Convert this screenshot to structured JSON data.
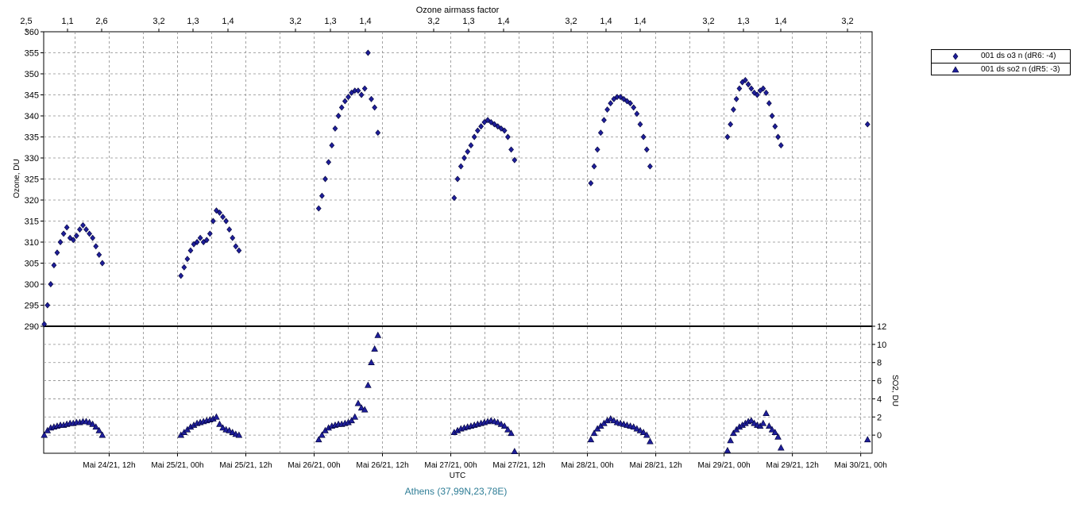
{
  "chart_data": {
    "type": "scatter",
    "top_axis": {
      "label": "Ozone airmass factor",
      "ticks": [
        "2,5",
        "1,1",
        "2,6",
        "3,2",
        "1,3",
        "1,4",
        "3,2",
        "1,3",
        "1,4",
        "3,2",
        "1,3",
        "1,4",
        "3,2",
        "1,4",
        "1,4",
        "3,2",
        "1,3",
        "1,4",
        "3,2"
      ]
    },
    "x_axis": {
      "label": "UTC",
      "ticks": [
        "Маі 24/21, 12h",
        "Маі 25/21, 00h",
        "Маі 25/21, 12h",
        "Маі 26/21, 00h",
        "Маі 26/21, 12h",
        "Маі 27/21, 00h",
        "Маі 27/21, 12h",
        "Маі 28/21, 00h",
        "Маі 28/21, 12h",
        "Маі 29/21, 00h",
        "Маі 29/21, 12h",
        "Маі 30/21, 00h"
      ],
      "range_hours": [
        0.5,
        146
      ]
    },
    "ozone_panel": {
      "ylabel": "Ozone, DU",
      "ylim": [
        290,
        360
      ],
      "yticks": [
        290,
        295,
        300,
        305,
        310,
        315,
        320,
        325,
        330,
        335,
        340,
        345,
        350,
        355,
        360
      ],
      "grid": true
    },
    "so2_panel": {
      "ylabel": "SO2, DU",
      "ylim": [
        -2,
        12
      ],
      "yticks": [
        0,
        2,
        4,
        6,
        8,
        10,
        12
      ],
      "grid": true
    },
    "series": [
      {
        "name": "001 ds o3  n (dR6: -4)",
        "marker": "diamond",
        "color": "#1e1e9a",
        "days": [
          {
            "start": 0.6,
            "end": 10.8,
            "values": [
              290.5,
              295,
              300,
              304.5,
              307.5,
              310,
              312,
              313.5,
              311,
              310.5,
              311.5,
              313,
              314,
              313,
              312,
              311,
              309,
              307,
              305
            ]
          },
          {
            "start": 24.6,
            "end": 34.8,
            "values": [
              302,
              304,
              306,
              308,
              309.5,
              310,
              311,
              310,
              310.5,
              312,
              315,
              317.5,
              317,
              316,
              315,
              313,
              311,
              309,
              308
            ]
          },
          {
            "start": 48.8,
            "end": 59.2,
            "values": [
              318,
              321,
              325,
              329,
              333,
              337,
              340,
              342,
              343.5,
              344.5,
              345.5,
              346,
              346,
              345,
              346.5,
              355,
              344,
              342,
              336
            ]
          },
          {
            "start": 72.6,
            "end": 83.2,
            "values": [
              320.5,
              325,
              328,
              330,
              331.5,
              333,
              335,
              336.5,
              337.5,
              338.5,
              339,
              338.5,
              338,
              337.5,
              337,
              336.5,
              335,
              332,
              329.5
            ]
          },
          {
            "start": 96.6,
            "end": 107.0,
            "values": [
              324,
              328,
              332,
              336,
              339,
              341.5,
              343,
              344,
              344.5,
              344.5,
              344,
              343.5,
              343,
              342,
              340.5,
              338,
              335,
              332,
              328
            ]
          },
          {
            "start": 120.6,
            "end": 130.0,
            "values": [
              335,
              338,
              341.5,
              344,
              346.5,
              348,
              348.5,
              347.5,
              346.5,
              345.5,
              345,
              346,
              346.5,
              345.5,
              343,
              340,
              337.5,
              335,
              333
            ]
          },
          {
            "start": 145.2,
            "end": 145.2,
            "values": [
              338
            ]
          }
        ]
      },
      {
        "name": "001 ds so2 n (dR5: -3)",
        "marker": "triangle",
        "color": "#1e1e9a",
        "days": [
          {
            "start": 0.6,
            "end": 10.8,
            "values": [
              0,
              0.5,
              0.8,
              0.9,
              1.0,
              1.1,
              1.1,
              1.2,
              1.3,
              1.3,
              1.4,
              1.4,
              1.5,
              1.5,
              1.4,
              1.2,
              0.9,
              0.5,
              0
            ]
          },
          {
            "start": 24.6,
            "end": 34.8,
            "values": [
              0,
              0.3,
              0.6,
              0.9,
              1.1,
              1.3,
              1.4,
              1.5,
              1.6,
              1.7,
              1.8,
              2.0,
              1.2,
              0.8,
              0.6,
              0.5,
              0.3,
              0.1,
              0
            ]
          },
          {
            "start": 48.8,
            "end": 59.2,
            "values": [
              -0.5,
              0,
              0.5,
              0.8,
              1.0,
              1.1,
              1.2,
              1.2,
              1.3,
              1.4,
              1.6,
              2.0,
              3.5,
              3.0,
              2.8,
              5.5,
              8.0,
              9.5,
              11.0
            ]
          },
          {
            "start": 72.6,
            "end": 83.2,
            "values": [
              0.3,
              0.5,
              0.7,
              0.8,
              0.9,
              1.0,
              1.1,
              1.2,
              1.3,
              1.4,
              1.5,
              1.6,
              1.5,
              1.4,
              1.2,
              1.0,
              0.6,
              0.2,
              -1.8
            ]
          },
          {
            "start": 96.6,
            "end": 107.0,
            "values": [
              -0.5,
              0.2,
              0.7,
              1.0,
              1.3,
              1.6,
              1.8,
              1.6,
              1.4,
              1.3,
              1.2,
              1.1,
              1.0,
              0.9,
              0.7,
              0.5,
              0.3,
              0,
              -0.7
            ]
          },
          {
            "start": 120.6,
            "end": 130.0,
            "values": [
              -1.7,
              -0.6,
              0.2,
              0.6,
              0.9,
              1.1,
              1.3,
              1.5,
              1.6,
              1.3,
              1.1,
              1.0,
              1.3,
              2.4,
              1.0,
              0.6,
              0.3,
              -0.2,
              -1.4
            ]
          },
          {
            "start": 145.2,
            "end": 145.2,
            "values": [
              -0.5
            ]
          }
        ]
      }
    ],
    "legend_position": "top-right",
    "caption": "Athens (37,99N,23,78E)"
  }
}
